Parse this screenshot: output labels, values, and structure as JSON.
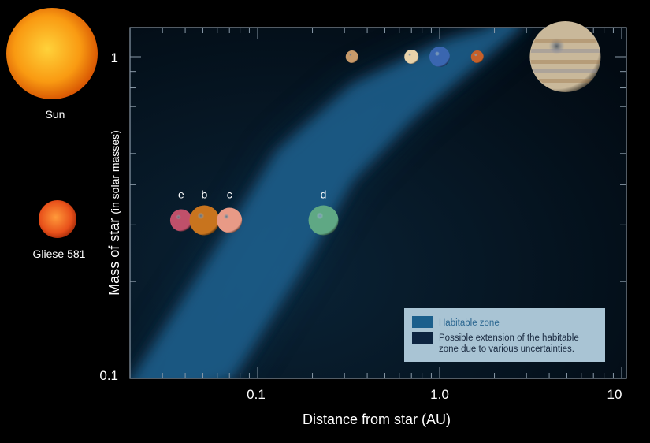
{
  "chart_data": {
    "type": "scatter",
    "xlabel": "Distance from star (AU)",
    "ylabel_main": "Mass of star",
    "ylabel_sub": "(in solar masses)",
    "x_scale": "log",
    "y_scale": "log",
    "xlim": [
      0.021,
      10
    ],
    "ylim": [
      0.1,
      1.23
    ],
    "x_ticks": [
      {
        "v": 0.1,
        "label": "0.1"
      },
      {
        "v": 1,
        "label": "1.0"
      },
      {
        "v": 10,
        "label": "10"
      }
    ],
    "y_ticks": [
      {
        "v": 0.1,
        "label": "0.1"
      },
      {
        "v": 1,
        "label": "1"
      }
    ],
    "grid": false,
    "legend_placement": "bottom-right",
    "legend": [
      {
        "label": "Habitable zone",
        "color": "#1b5f8c"
      },
      {
        "label": "Possible extension of the habitable zone due to various uncertainties.",
        "line1": "Possible extension of the habitable",
        "line2": "zone due to various uncertainties.",
        "color": "#0d2440"
      }
    ],
    "habitable_zone": {
      "inner_edge": [
        [
          0.0205,
          0.1
        ],
        [
          0.064,
          0.27
        ],
        [
          0.128,
          0.51
        ],
        [
          0.33,
          0.82
        ],
        [
          1.1,
          1.13
        ],
        [
          1.87,
          1.23
        ]
      ],
      "outer_edge": [
        [
          0.073,
          0.1
        ],
        [
          0.185,
          0.23
        ],
        [
          0.33,
          0.41
        ],
        [
          0.73,
          0.65
        ],
        [
          2.8,
          1.23
        ]
      ]
    },
    "stars": [
      {
        "label": "Sun",
        "mass": 1
      },
      {
        "label": "Gliese 581",
        "mass": 0.31
      }
    ],
    "planets": [
      {
        "label": "e",
        "distance": 0.038,
        "mass": 0.31,
        "color": "#c0506a",
        "system": "Gliese 581"
      },
      {
        "label": "b",
        "distance": 0.051,
        "mass": 0.31,
        "color": "#c8741e",
        "system": "Gliese 581"
      },
      {
        "label": "c",
        "distance": 0.07,
        "mass": 0.31,
        "color": "#e89a86",
        "system": "Gliese 581"
      },
      {
        "label": "d",
        "distance": 0.23,
        "mass": 0.31,
        "color": "#5fa884",
        "system": "Gliese 581"
      },
      {
        "label": "",
        "name": "mercury",
        "distance": 0.33,
        "mass": 1,
        "color": "#c89a6a",
        "system": "Solar"
      },
      {
        "label": "",
        "name": "venus",
        "distance": 0.7,
        "mass": 1,
        "color": "#e8d2aa",
        "system": "Solar"
      },
      {
        "label": "",
        "name": "earth",
        "distance": 1.0,
        "mass": 1,
        "color": "#3a66b0",
        "system": "Solar"
      },
      {
        "label": "",
        "name": "mars",
        "distance": 1.61,
        "mass": 1,
        "color": "#c5602a",
        "system": "Solar"
      },
      {
        "label": "",
        "name": "jupiter",
        "distance": 4.9,
        "mass": 1,
        "color": "#c9b89a",
        "system": "Solar"
      }
    ],
    "colors": {
      "background": "#000000",
      "plot_bg": "#03111c",
      "habitable": "#1b5f8c",
      "extension": "#0d2440",
      "legend_bg": "#a9c4d4"
    }
  }
}
